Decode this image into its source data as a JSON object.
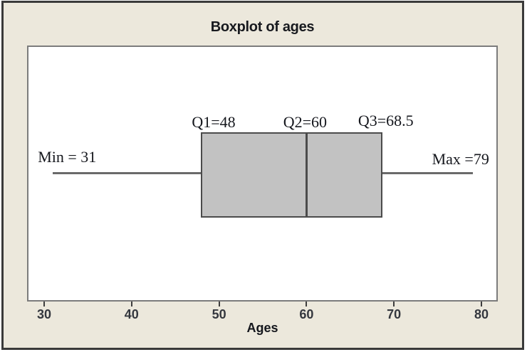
{
  "chart": {
    "title": "Boxplot of ages",
    "xlabel": "Ages",
    "colors": {
      "frame_background": "#ece8dc",
      "frame_border": "#3a3a3a",
      "plot_background": "#ffffff",
      "plot_border": "#7c7c7c",
      "box_fill": "#c2c2c2",
      "box_border": "#4b4b4b",
      "whisker": "#6a6a6a",
      "text": "#15171d",
      "tick_text": "#34373e"
    }
  },
  "chart_data": {
    "type": "boxplot",
    "orientation": "horizontal",
    "title": "Boxplot of ages",
    "xlabel": "Ages",
    "x_ticks": [
      30,
      40,
      50,
      60,
      70,
      80
    ],
    "xlim": [
      28,
      82
    ],
    "grid": false,
    "series": [
      {
        "name": "ages",
        "min": 31,
        "q1": 48,
        "median": 60,
        "q3": 68.5,
        "max": 79
      }
    ],
    "annotations": [
      {
        "id": "min",
        "text": "Min = 31",
        "value": 31
      },
      {
        "id": "q1",
        "text": "Q1=48",
        "value": 48
      },
      {
        "id": "q2",
        "text": "Q2=60",
        "value": 60
      },
      {
        "id": "q3",
        "text": "Q3=68.5",
        "value": 68.5
      },
      {
        "id": "max",
        "text": "Max =79",
        "value": 79
      }
    ]
  }
}
